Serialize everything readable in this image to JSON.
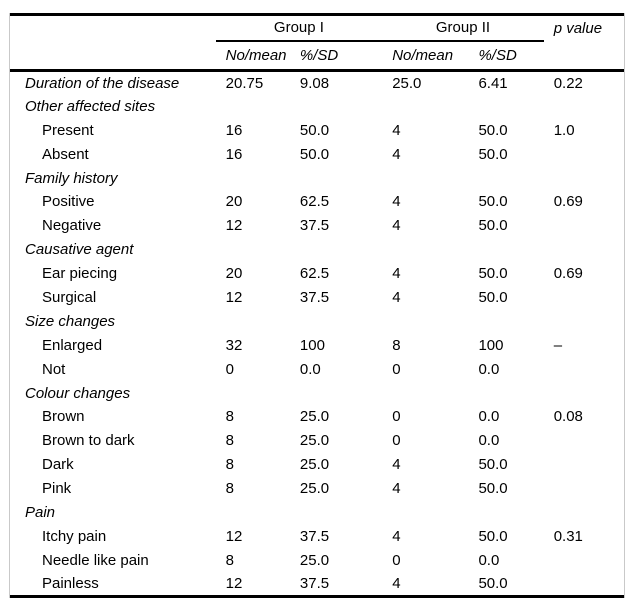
{
  "table": {
    "group_headers": [
      "Group I",
      "Group II"
    ],
    "p_value_header": "p value",
    "sub_headers": [
      "No/mean",
      "%/SD",
      "No/mean",
      "%/SD"
    ],
    "rows": [
      {
        "label": "Duration of the disease",
        "style": "section",
        "values": [
          "20.75",
          "9.08",
          "25.0",
          "6.41",
          "0.22"
        ]
      },
      {
        "label": "Other affected sites",
        "style": "section",
        "values": [
          "",
          "",
          "",
          "",
          ""
        ]
      },
      {
        "label": "Present",
        "style": "item",
        "values": [
          "16",
          "50.0",
          "4",
          "50.0",
          "1.0"
        ]
      },
      {
        "label": "Absent",
        "style": "item",
        "values": [
          "16",
          "50.0",
          "4",
          "50.0",
          ""
        ]
      },
      {
        "label": "Family history",
        "style": "section",
        "values": [
          "",
          "",
          "",
          "",
          ""
        ]
      },
      {
        "label": "Positive",
        "style": "item",
        "values": [
          "20",
          "62.5",
          "4",
          "50.0",
          "0.69"
        ]
      },
      {
        "label": "Negative",
        "style": "item",
        "values": [
          "12",
          "37.5",
          "4",
          "50.0",
          ""
        ]
      },
      {
        "label": "Causative agent",
        "style": "section",
        "values": [
          "",
          "",
          "",
          "",
          ""
        ]
      },
      {
        "label": "Ear piecing",
        "style": "item",
        "values": [
          "20",
          "62.5",
          "4",
          "50.0",
          "0.69"
        ]
      },
      {
        "label": "Surgical",
        "style": "item",
        "values": [
          "12",
          "37.5",
          "4",
          "50.0",
          ""
        ]
      },
      {
        "label": "Size changes",
        "style": "section",
        "values": [
          "",
          "",
          "",
          "",
          ""
        ]
      },
      {
        "label": "Enlarged",
        "style": "item",
        "values": [
          "32",
          "100",
          "8",
          "100",
          "–"
        ]
      },
      {
        "label": "Not",
        "style": "item",
        "values": [
          "0",
          "0.0",
          "0",
          "0.0",
          ""
        ]
      },
      {
        "label": "Colour changes",
        "style": "section",
        "values": [
          "",
          "",
          "",
          "",
          ""
        ]
      },
      {
        "label": "Brown",
        "style": "item",
        "values": [
          "8",
          "25.0",
          "0",
          "0.0",
          "0.08"
        ]
      },
      {
        "label": "Brown to dark",
        "style": "item",
        "values": [
          "8",
          "25.0",
          "0",
          "0.0",
          ""
        ]
      },
      {
        "label": "Dark",
        "style": "item",
        "values": [
          "8",
          "25.0",
          "4",
          "50.0",
          ""
        ]
      },
      {
        "label": "Pink",
        "style": "item",
        "values": [
          "8",
          "25.0",
          "4",
          "50.0",
          ""
        ]
      },
      {
        "label": "Pain",
        "style": "section",
        "values": [
          "",
          "",
          "",
          "",
          ""
        ]
      },
      {
        "label": "Itchy pain",
        "style": "item",
        "values": [
          "12",
          "37.5",
          "4",
          "50.0",
          "0.31"
        ]
      },
      {
        "label": "Needle like pain",
        "style": "item",
        "values": [
          "8",
          "25.0",
          "0",
          "0.0",
          ""
        ]
      },
      {
        "label": "Painless",
        "style": "item",
        "values": [
          "12",
          "37.5",
          "4",
          "50.0",
          ""
        ]
      }
    ]
  }
}
